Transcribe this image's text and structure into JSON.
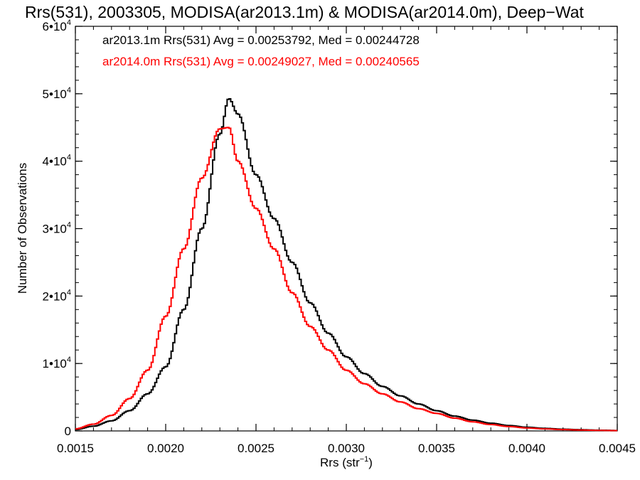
{
  "chart_data": {
    "type": "line",
    "title": "Rrs(531), 2003305, MODISA(ar2013.1m) & MODISA(ar2014.0m), Deep−Wat",
    "xlabel": "Rrs (str",
    "xlabel_sup": "−1",
    "xlabel_close": ")",
    "ylabel": "Number of Observations",
    "xlim": [
      0.0015,
      0.0045
    ],
    "ylim": [
      0,
      60000
    ],
    "xticks": [
      {
        "value": 0.0015,
        "label": "0.0015"
      },
      {
        "value": 0.002,
        "label": "0.0020"
      },
      {
        "value": 0.0025,
        "label": "0.0025"
      },
      {
        "value": 0.003,
        "label": "0.0030"
      },
      {
        "value": 0.0035,
        "label": "0.0035"
      },
      {
        "value": 0.004,
        "label": "0.0040"
      },
      {
        "value": 0.0045,
        "label": "0.0045"
      }
    ],
    "yticks": [
      {
        "value": 0,
        "mant": "0",
        "exp": ""
      },
      {
        "value": 10000,
        "mant": "1•10",
        "exp": "4"
      },
      {
        "value": 20000,
        "mant": "2•10",
        "exp": "4"
      },
      {
        "value": 30000,
        "mant": "3•10",
        "exp": "4"
      },
      {
        "value": 40000,
        "mant": "4•10",
        "exp": "4"
      },
      {
        "value": 50000,
        "mant": "5•10",
        "exp": "4"
      },
      {
        "value": 60000,
        "mant": "6•10",
        "exp": "4"
      }
    ],
    "grid": false,
    "legend_position": "top-left",
    "series": [
      {
        "name": "ar2013.1m Rrs(531) Avg = 0.00253792, Med = 0.00244728",
        "color": "#000000",
        "x": [
          0.0015,
          0.0016,
          0.0017,
          0.0018,
          0.0019,
          0.002,
          0.0021,
          0.0022,
          0.0023,
          0.00235,
          0.0024,
          0.0025,
          0.0026,
          0.0027,
          0.0028,
          0.0029,
          0.003,
          0.0031,
          0.0032,
          0.0033,
          0.0034,
          0.0035,
          0.0036,
          0.0037,
          0.0038,
          0.0039,
          0.004,
          0.0041,
          0.0042,
          0.0043,
          0.0044,
          0.0045
        ],
        "y": [
          200,
          700,
          1500,
          3000,
          5500,
          9500,
          18000,
          30000,
          44000,
          49300,
          47000,
          38000,
          31500,
          25000,
          19000,
          14500,
          11000,
          8500,
          6600,
          5200,
          4000,
          3000,
          2200,
          1600,
          1150,
          800,
          550,
          380,
          260,
          180,
          110,
          70
        ]
      },
      {
        "name": "ar2014.0m Rrs(531) Avg = 0.00249027, Med = 0.00240565",
        "color": "#ff0000",
        "x": [
          0.0015,
          0.0016,
          0.0017,
          0.0018,
          0.0019,
          0.002,
          0.0021,
          0.0022,
          0.0023,
          0.00235,
          0.0024,
          0.0025,
          0.0026,
          0.0027,
          0.0028,
          0.0029,
          0.003,
          0.0031,
          0.0032,
          0.0033,
          0.0034,
          0.0035,
          0.0036,
          0.0037,
          0.0038,
          0.0039,
          0.004,
          0.0041,
          0.0042,
          0.0043,
          0.0044,
          0.0045
        ],
        "y": [
          300,
          1000,
          2300,
          4800,
          9000,
          17000,
          27000,
          37500,
          44800,
          45000,
          40000,
          33000,
          27000,
          20500,
          15500,
          12000,
          9000,
          7000,
          5500,
          4300,
          3300,
          2600,
          1900,
          1350,
          950,
          650,
          440,
          300,
          200,
          130,
          80,
          50
        ]
      }
    ]
  }
}
